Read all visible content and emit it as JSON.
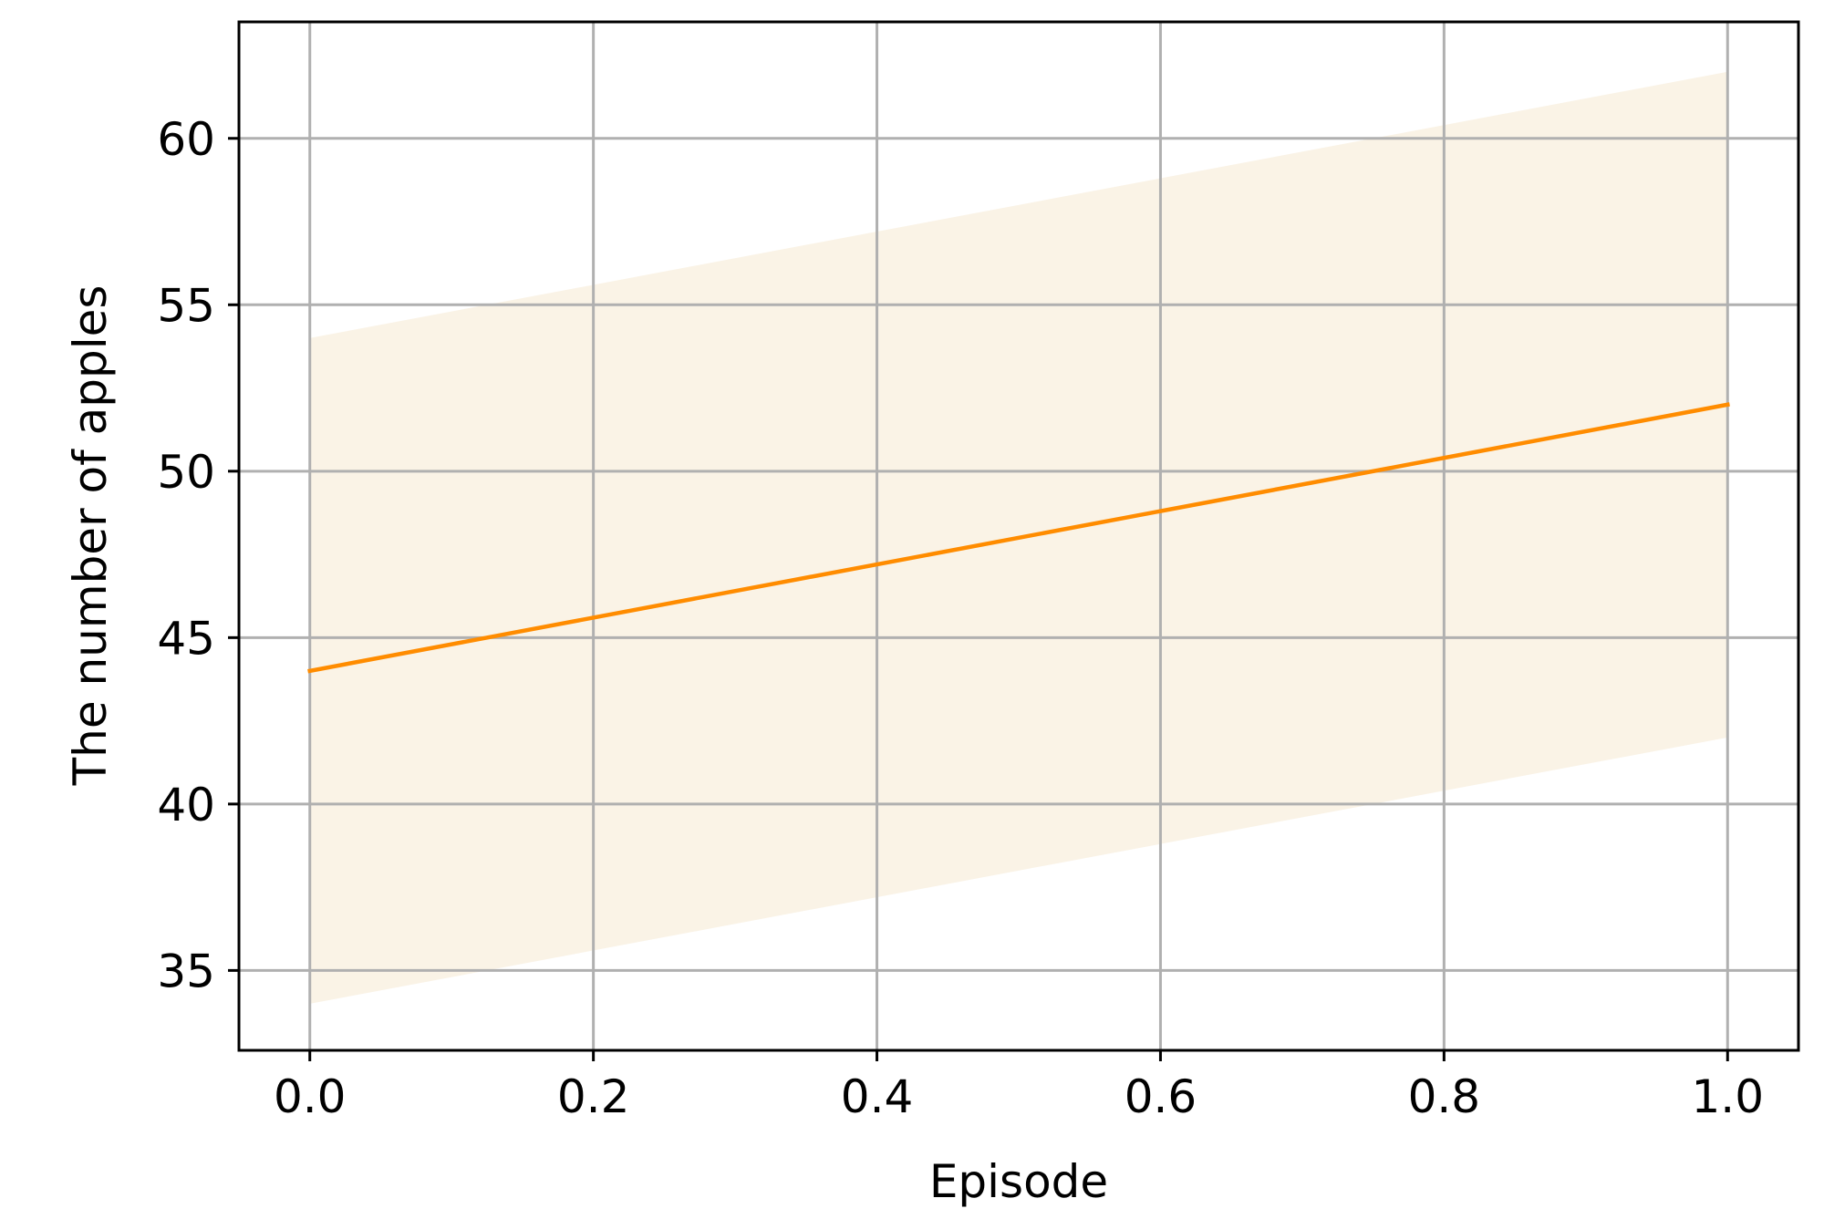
{
  "colors": {
    "line": "#ff8c00",
    "band": "#faf3e6",
    "grid": "#b0b0b0",
    "axes": "#000000",
    "background": "#ffffff"
  },
  "chart_data": {
    "type": "line",
    "title": "",
    "xlabel": "Episode",
    "ylabel": "The number of apples",
    "xlim": [
      -0.05,
      1.05
    ],
    "ylim": [
      32.6,
      63.5
    ],
    "xticks": [
      0.0,
      0.2,
      0.4,
      0.6,
      0.8,
      1.0
    ],
    "xtick_labels": [
      "0.0",
      "0.2",
      "0.4",
      "0.6",
      "0.8",
      "1.0"
    ],
    "yticks": [
      35,
      40,
      45,
      50,
      55,
      60
    ],
    "ytick_labels": [
      "35",
      "40",
      "45",
      "50",
      "55",
      "60"
    ],
    "grid": true,
    "legend": "none",
    "series": [
      {
        "x": [
          0.0,
          1.0
        ],
        "values": [
          44,
          52
        ],
        "band_lower": [
          34,
          42
        ],
        "band_upper": [
          54,
          62
        ]
      }
    ]
  }
}
